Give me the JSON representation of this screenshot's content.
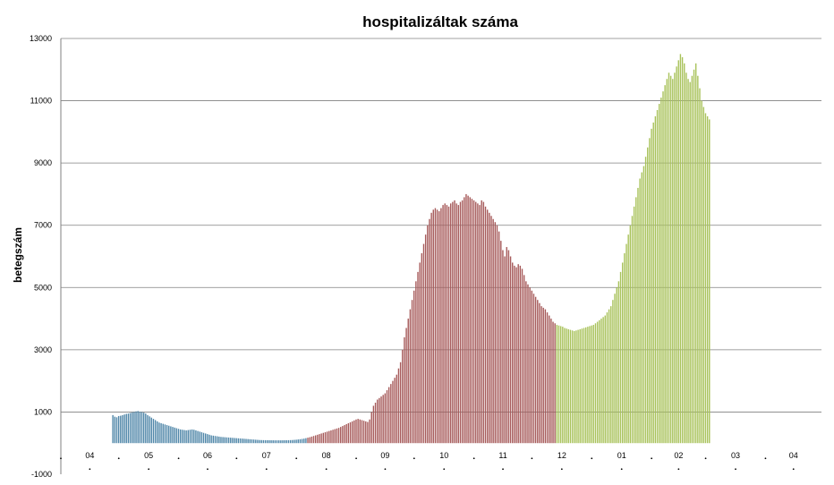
{
  "chart_data": {
    "type": "bar",
    "title": "hospitalizáltak száma",
    "xlabel": "",
    "ylabel": "betegszám",
    "ylim": [
      -1000,
      13000
    ],
    "yticks": [
      -1000,
      1000,
      3000,
      5000,
      7000,
      9000,
      11000,
      13000
    ],
    "xticks": [
      "04",
      "05",
      "06",
      "07",
      "08",
      "09",
      "10",
      "11",
      "12",
      "01",
      "02",
      "03",
      "04"
    ],
    "grid": true,
    "colors": {
      "wave1": "#4f86a8",
      "wave2": "#a65a5a",
      "wave3": "#a8c25a",
      "grid": "#808080"
    },
    "x_start": "2020-04-01",
    "x_end": "2021-04-30",
    "series": [
      {
        "color": "#4f86a8",
        "values_comment": "daily hospitalized counts, start 2020-04-28, step 1 day",
        "values": [
          900,
          850,
          830,
          870,
          880,
          900,
          920,
          940,
          950,
          970,
          990,
          1000,
          1020,
          1030,
          1010,
          1000,
          980,
          950,
          900,
          860,
          820,
          780,
          740,
          700,
          660,
          640,
          620,
          600,
          580,
          560,
          540,
          520,
          500,
          480,
          460,
          440,
          430,
          420,
          410,
          420,
          430,
          440,
          430,
          410,
          390,
          370,
          350,
          330,
          310,
          290,
          270,
          250,
          240,
          230,
          220,
          210,
          200,
          195,
          190,
          185,
          180,
          175,
          170,
          165,
          160,
          155,
          150,
          145,
          140,
          135,
          130,
          125,
          120,
          115,
          110,
          105,
          100,
          98,
          96,
          95,
          94,
          93,
          92,
          91,
          90,
          90,
          90,
          90,
          91,
          92,
          93,
          95,
          97,
          100,
          105,
          110,
          118,
          126,
          135,
          145,
          160
        ]
      },
      {
        "color": "#a65a5a",
        "values": [
          175,
          190,
          210,
          230,
          250,
          270,
          290,
          310,
          330,
          350,
          370,
          390,
          410,
          430,
          450,
          470,
          490,
          520,
          550,
          580,
          610,
          640,
          670,
          700,
          730,
          760,
          780,
          760,
          740,
          720,
          700,
          680,
          760,
          1000,
          1200,
          1300,
          1400,
          1450,
          1500,
          1550,
          1600,
          1700,
          1800,
          1900,
          2000,
          2100,
          2200,
          2400,
          2600,
          3000,
          3400,
          3700,
          4000,
          4300,
          4600,
          4900,
          5200,
          5500,
          5800,
          6100,
          6400,
          6700,
          7000,
          7200,
          7400,
          7500,
          7550,
          7500,
          7450,
          7550,
          7650,
          7700,
          7650,
          7600,
          7700,
          7750,
          7800,
          7700,
          7650,
          7750,
          7800,
          7900,
          8000,
          7950,
          7900,
          7850,
          7800,
          7750,
          7700,
          7650,
          7800,
          7750,
          7600,
          7500,
          7400,
          7300,
          7200,
          7100,
          7000,
          6800,
          6500,
          6200,
          6000,
          6300,
          6200,
          6000,
          5800,
          5700,
          5650,
          5750,
          5700,
          5600,
          5400,
          5200,
          5100,
          5000,
          4900,
          4800,
          4700,
          4600,
          4500,
          4400,
          4350,
          4300,
          4200,
          4100,
          4000,
          3900,
          3850
        ]
      },
      {
        "color": "#a8c25a",
        "values": [
          3800,
          3780,
          3760,
          3740,
          3700,
          3680,
          3660,
          3640,
          3620,
          3600,
          3620,
          3640,
          3660,
          3680,
          3700,
          3720,
          3740,
          3760,
          3780,
          3800,
          3850,
          3900,
          3950,
          4000,
          4050,
          4100,
          4200,
          4300,
          4400,
          4600,
          4800,
          5000,
          5200,
          5500,
          5800,
          6100,
          6400,
          6700,
          7000,
          7300,
          7600,
          7900,
          8200,
          8500,
          8700,
          8900,
          9200,
          9500,
          9800,
          10100,
          10300,
          10500,
          10700,
          10900,
          11100,
          11300,
          11500,
          11700,
          11900,
          11800,
          11700,
          11900,
          12100,
          12300,
          12500,
          12400,
          12200,
          11900,
          11700,
          11600,
          11800,
          12000,
          12200,
          11800,
          11400,
          11000,
          10800,
          10600,
          10500,
          10400
        ]
      }
    ]
  }
}
